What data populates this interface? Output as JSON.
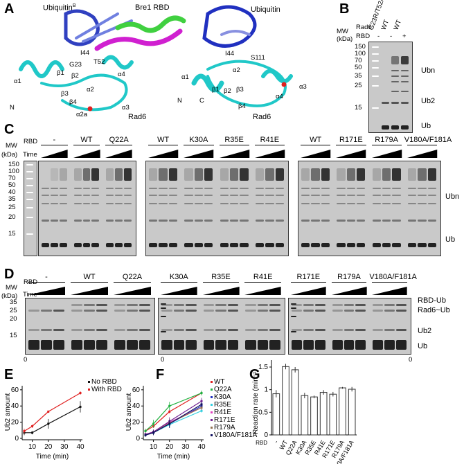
{
  "panels": {
    "a": "A",
    "b": "B",
    "c": "C",
    "d": "D",
    "e": "E",
    "f": "F",
    "g": "G"
  },
  "panel_a": {
    "left_labels": [
      "Ubiquitin",
      "B",
      "Bre1 RBD",
      "I44",
      "G23",
      "T52",
      "β1",
      "β2",
      "α4",
      "α1",
      "N",
      "β3",
      "α2",
      "β4",
      "α3",
      "α2a",
      "Rad6"
    ],
    "right_labels": [
      "Ubiquitin",
      "I44",
      "S111",
      "α1",
      "α2",
      "β1",
      "β2",
      "β3",
      "α4",
      "α3",
      "N",
      "C",
      "β4",
      "Rad6"
    ]
  },
  "panel_b": {
    "mw_label": "MW (kDa)",
    "rad6_label": "Rad6",
    "rbd_label": "RBD",
    "lanes": [
      {
        "rad6": "G23R/T52A",
        "rbd": "-"
      },
      {
        "rad6": "WT",
        "rbd": "-"
      },
      {
        "rad6": "WT",
        "rbd": "+"
      }
    ],
    "markers": [
      "150",
      "100",
      "70",
      "50",
      "35",
      "25",
      "15"
    ],
    "bands": [
      "Ubn",
      "Ub2",
      "Ub"
    ]
  },
  "panel_c": {
    "mw_label": "MW",
    "kda_label": "(kDa)",
    "rbd_label": "RBD",
    "time_label": "Time",
    "markers": [
      "150",
      "100",
      "70",
      "50",
      "40",
      "35",
      "25",
      "20",
      "15"
    ],
    "groups": [
      [
        "-",
        "WT",
        "Q22A"
      ],
      [
        "WT",
        "K30A",
        "R35E",
        "R41E"
      ],
      [
        "WT",
        "R171E",
        "R179A",
        "V180A/F181A"
      ]
    ],
    "bands": [
      "Ubn",
      "Ub"
    ]
  },
  "panel_d": {
    "mw_label": "MW",
    "kda_label": "(kDa)",
    "rbd_label": "RBD",
    "time_label": "Time",
    "markers": [
      "35",
      "25",
      "20",
      "15"
    ],
    "groups": [
      [
        "-",
        "WT",
        "Q22A"
      ],
      [
        "K30A",
        "R35E",
        "R41E"
      ],
      [
        "R171E",
        "R179A",
        "V180A/F181A"
      ]
    ],
    "bands": [
      "RBD-Ub",
      "Rad6~Ub",
      "Ub2",
      "Ub"
    ],
    "zero_labels": [
      "0",
      "0",
      "0"
    ]
  },
  "chart_data": [
    {
      "type": "line",
      "panel": "E",
      "xlabel": "Time (min)",
      "ylabel": "Ub2 amount",
      "xticks": [
        10,
        20,
        30,
        40
      ],
      "yticks": [
        0,
        20,
        40,
        60
      ],
      "xlim": [
        5,
        40
      ],
      "ylim": [
        0,
        65
      ],
      "legend": "top-right",
      "series": [
        {
          "name": "No RBD",
          "color": "#111111",
          "x": [
            5,
            10,
            20,
            40
          ],
          "y": [
            7,
            7,
            18,
            39
          ],
          "err": [
            3,
            2,
            6,
            7
          ]
        },
        {
          "name": "With RBD",
          "color": "#e02020",
          "x": [
            5,
            10,
            20,
            40
          ],
          "y": [
            9,
            15,
            33,
            56
          ],
          "err": [
            3,
            2,
            1.5,
            2
          ]
        }
      ]
    },
    {
      "type": "line",
      "panel": "F",
      "xlabel": "Time (min)",
      "ylabel": "Ub2 amount",
      "xticks": [
        10,
        20,
        30,
        40
      ],
      "yticks": [
        0,
        20,
        40,
        60
      ],
      "xlim": [
        5,
        40
      ],
      "ylim": [
        0,
        65
      ],
      "legend": "right",
      "series": [
        {
          "name": "WT",
          "color": "#e02020",
          "x": [
            5,
            10,
            20,
            40
          ],
          "y": [
            9,
            15,
            33,
            56
          ],
          "err": [
            3,
            2,
            2,
            2
          ]
        },
        {
          "name": "Q22A",
          "color": "#20b040",
          "x": [
            5,
            10,
            20,
            40
          ],
          "y": [
            9,
            18,
            40,
            56
          ],
          "err": [
            3,
            5,
            5,
            3
          ]
        },
        {
          "name": "K30A",
          "color": "#2030c0",
          "x": [
            5,
            10,
            20,
            40
          ],
          "y": [
            4,
            7,
            18,
            40
          ],
          "err": [
            2,
            3,
            5,
            4
          ]
        },
        {
          "name": "R35E",
          "color": "#30d0e0",
          "x": [
            5,
            10,
            20,
            40
          ],
          "y": [
            4,
            7,
            17,
            34
          ],
          "err": [
            2,
            3,
            4,
            2
          ]
        },
        {
          "name": "R41E",
          "color": "#e040c0",
          "x": [
            5,
            10,
            20,
            40
          ],
          "y": [
            5,
            8,
            20,
            38
          ],
          "err": [
            2,
            3,
            4,
            3
          ]
        },
        {
          "name": "R171E",
          "color": "#702090",
          "x": [
            5,
            10,
            20,
            40
          ],
          "y": [
            5,
            8,
            21,
            46
          ],
          "err": [
            2,
            3,
            5,
            4
          ]
        },
        {
          "name": "R179A",
          "color": "#907050",
          "x": [
            5,
            10,
            20,
            40
          ],
          "y": [
            4,
            7,
            19,
            38
          ],
          "err": [
            2,
            3,
            5,
            3
          ]
        },
        {
          "name": "V180A/F181A",
          "color": "#101060",
          "x": [
            5,
            10,
            20,
            40
          ],
          "y": [
            4,
            7,
            18,
            42
          ],
          "err": [
            2,
            3,
            5,
            3
          ]
        }
      ]
    },
    {
      "type": "bar",
      "panel": "G",
      "ylabel": "Reaction rate (min⁻¹)",
      "xlabel": "RBD",
      "yticks": [
        "0",
        "0.5",
        "1",
        "1.5"
      ],
      "ylim": [
        0,
        1.6
      ],
      "categories": [
        "-",
        "WT",
        "Q22A",
        "K30A",
        "R35E",
        "R41E",
        "R171E",
        "R179A",
        "V180A/F181A"
      ],
      "values": [
        0.91,
        1.51,
        1.44,
        0.87,
        0.84,
        0.94,
        0.9,
        1.04,
        1.01
      ],
      "err": [
        0.08,
        0.06,
        0.06,
        0.06,
        0.03,
        0.05,
        0.05,
        0.02,
        0.05
      ]
    }
  ]
}
